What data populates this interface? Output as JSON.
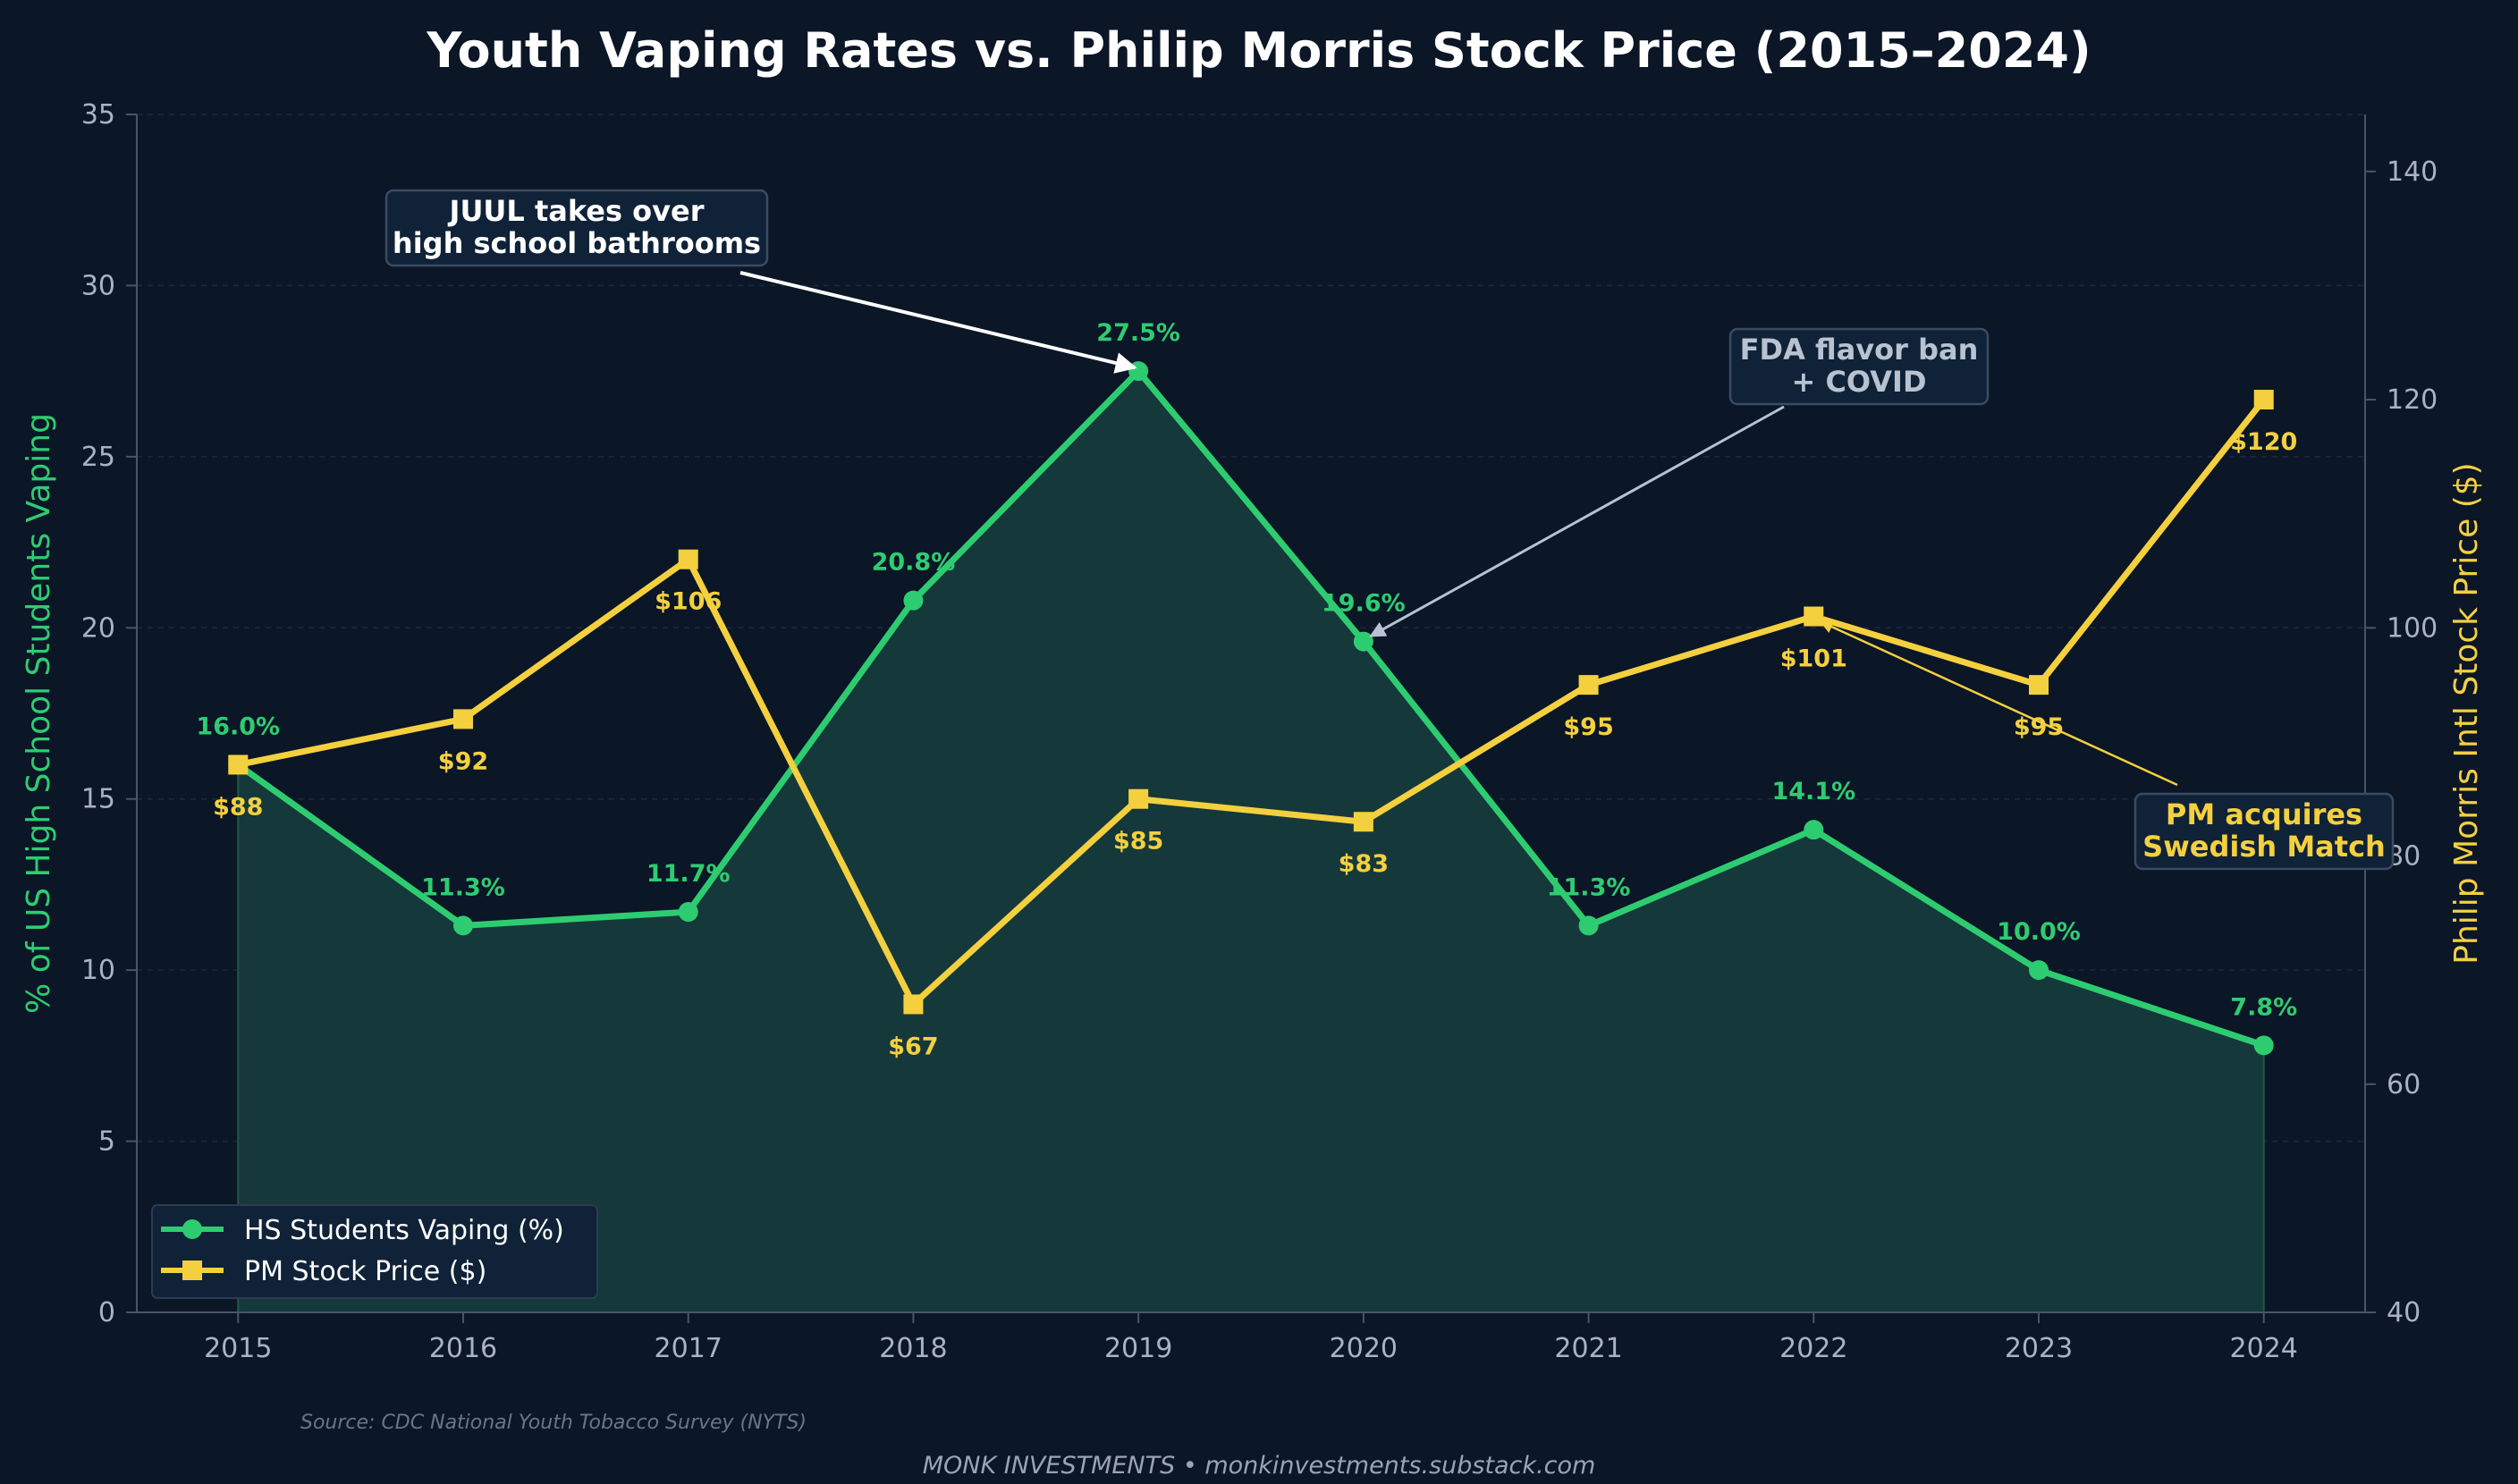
{
  "colors": {
    "background": "#0b1627",
    "vaping": "#2ecc71",
    "stock": "#f4d03f",
    "fill": "#15383a",
    "axis": "#4a5566",
    "grid": "#1e2a3c",
    "fda_annotation": "#b8c2d0",
    "box_fill": "#0f2238"
  },
  "chart_data": {
    "type": "line",
    "title": "Youth Vaping Rates vs. Philip Morris Stock Price (2015–2024)",
    "x": [
      2015,
      2016,
      2017,
      2018,
      2019,
      2020,
      2021,
      2022,
      2023,
      2024
    ],
    "x_tick_labels": [
      "2015",
      "2016",
      "2017",
      "2018",
      "2019",
      "2020",
      "2021",
      "2022",
      "2023",
      "2024"
    ],
    "xlim": [
      2014.55,
      2024.45
    ],
    "y_left": {
      "label": "% of US High School Students Vaping",
      "lim": [
        0,
        35
      ],
      "ticks": [
        0,
        5,
        10,
        15,
        20,
        25,
        30,
        35
      ],
      "tick_labels": [
        "0",
        "5",
        "10",
        "15",
        "20",
        "25",
        "30",
        "35"
      ]
    },
    "y_right": {
      "label": "Philip Morris Intl Stock Price ($)",
      "lim": [
        40,
        145
      ],
      "ticks": [
        40,
        60,
        80,
        100,
        120,
        140
      ],
      "tick_labels": [
        "40",
        "60",
        "80",
        "100",
        "120",
        "140"
      ]
    },
    "grid": true,
    "legend_position": "lower-left",
    "series": [
      {
        "name": "HS Students Vaping (%)",
        "axis": "left",
        "marker": "circle",
        "filled_area": true,
        "values": [
          16.0,
          11.3,
          11.7,
          20.8,
          27.5,
          19.6,
          11.3,
          14.1,
          10.0,
          7.8
        ],
        "data_labels": [
          "16.0%",
          "11.3%",
          "11.7%",
          "20.8%",
          "27.5%",
          "19.6%",
          "11.3%",
          "14.1%",
          "10.0%",
          "7.8%"
        ]
      },
      {
        "name": "PM Stock Price ($)",
        "axis": "right",
        "marker": "square",
        "values": [
          88,
          92,
          106,
          67,
          85,
          83,
          95,
          101,
          95,
          120
        ],
        "data_labels": [
          "$88",
          "$92",
          "$106",
          "$67",
          "$85",
          "$83",
          "$95",
          "$101",
          "$95",
          "$120"
        ]
      }
    ],
    "annotations": [
      {
        "id": "juul",
        "lines": [
          "JUUL takes over",
          "high school bathrooms"
        ],
        "target_x": 2019,
        "target_value": 27.5,
        "target_axis": "left"
      },
      {
        "id": "fda",
        "lines": [
          "FDA flavor ban",
          "+ COVID"
        ],
        "target_x": 2020,
        "target_value": 19.6,
        "target_axis": "left"
      },
      {
        "id": "pm",
        "lines": [
          "PM acquires",
          "Swedish Match"
        ],
        "target_x": 2022,
        "target_value": 101,
        "target_axis": "right"
      }
    ]
  },
  "source": "Source: CDC National Youth Tobacco Survey (NYTS)",
  "footer": "MONK INVESTMENTS  •  monkinvestments.substack.com"
}
